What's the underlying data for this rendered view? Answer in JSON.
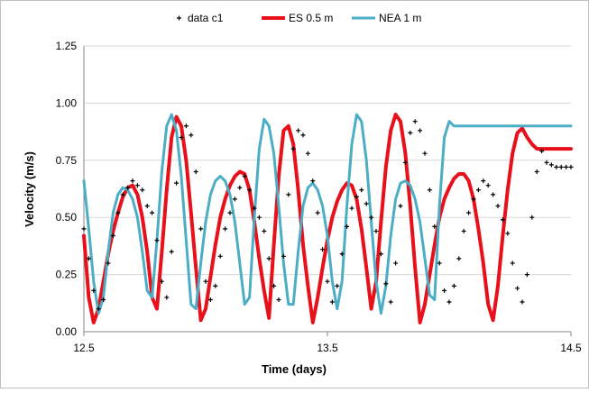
{
  "chart_data": {
    "type": "line",
    "title": "",
    "xlabel": "Time (days)",
    "ylabel": "Velocity (m/s)",
    "xlim": [
      12.5,
      14.5
    ],
    "ylim": [
      0,
      1.25
    ],
    "x_ticks": [
      12.5,
      13.5,
      14.5
    ],
    "x_tick_labels": [
      "12.5",
      "13.5",
      "14.5"
    ],
    "y_ticks": [
      0,
      0.25,
      0.5,
      0.75,
      1.0,
      1.25
    ],
    "y_tick_labels": [
      "0.00",
      "0.25",
      "0.50",
      "0.75",
      "1.00",
      "1.25"
    ],
    "grid": "horizontal",
    "legend_position": "top",
    "series": [
      {
        "name": "data c1",
        "style": "marker",
        "marker": "+",
        "color": "#000000",
        "x": [
          12.5,
          12.52,
          12.54,
          12.56,
          12.58,
          12.6,
          12.62,
          12.64,
          12.66,
          12.68,
          12.7,
          12.72,
          12.74,
          12.76,
          12.78,
          12.8,
          12.82,
          12.84,
          12.86,
          12.88,
          12.9,
          12.92,
          12.94,
          12.96,
          12.98,
          13.0,
          13.02,
          13.04,
          13.06,
          13.08,
          13.1,
          13.12,
          13.14,
          13.16,
          13.18,
          13.2,
          13.22,
          13.24,
          13.26,
          13.28,
          13.3,
          13.32,
          13.34,
          13.36,
          13.38,
          13.4,
          13.42,
          13.44,
          13.46,
          13.48,
          13.5,
          13.52,
          13.54,
          13.56,
          13.58,
          13.6,
          13.62,
          13.64,
          13.66,
          13.68,
          13.7,
          13.72,
          13.74,
          13.76,
          13.78,
          13.8,
          13.82,
          13.84,
          13.86,
          13.88,
          13.9,
          13.92,
          13.94,
          13.96,
          13.98,
          14.0,
          14.02,
          14.04,
          14.06,
          14.08,
          14.1,
          14.12,
          14.14,
          14.16,
          14.18,
          14.2,
          14.22,
          14.24,
          14.26,
          14.28,
          14.3,
          14.32,
          14.34,
          14.36,
          14.38,
          14.4,
          14.42,
          14.44,
          14.46,
          14.48,
          14.5
        ],
        "y": [
          0.45,
          0.32,
          0.18,
          0.1,
          0.14,
          0.3,
          0.42,
          0.52,
          0.6,
          0.63,
          0.66,
          0.64,
          0.62,
          0.55,
          0.52,
          0.4,
          0.22,
          0.15,
          0.35,
          0.65,
          0.85,
          0.9,
          0.86,
          0.7,
          0.45,
          0.22,
          0.14,
          0.2,
          0.33,
          0.45,
          0.52,
          0.58,
          0.63,
          0.68,
          0.62,
          0.54,
          0.5,
          0.44,
          0.32,
          0.2,
          0.14,
          0.33,
          0.6,
          0.8,
          0.88,
          0.86,
          0.78,
          0.66,
          0.52,
          0.36,
          0.22,
          0.13,
          0.2,
          0.34,
          0.46,
          0.54,
          0.59,
          0.62,
          0.56,
          0.5,
          0.44,
          0.34,
          0.21,
          0.13,
          0.3,
          0.55,
          0.74,
          0.87,
          0.92,
          0.88,
          0.78,
          0.62,
          0.46,
          0.3,
          0.18,
          0.13,
          0.2,
          0.32,
          0.44,
          0.52,
          0.58,
          0.62,
          0.66,
          0.64,
          0.6,
          0.55,
          0.49,
          0.43,
          0.3,
          0.19,
          0.13,
          0.25,
          0.5,
          0.7,
          0.79,
          0.74,
          0.73,
          0.72,
          0.72,
          0.72,
          0.72
        ]
      },
      {
        "name": "ES 0.5 m",
        "style": "line",
        "color": "#e8101a",
        "x": [
          12.5,
          12.52,
          12.54,
          12.56,
          12.58,
          12.6,
          12.62,
          12.64,
          12.66,
          12.68,
          12.7,
          12.72,
          12.74,
          12.76,
          12.78,
          12.8,
          12.82,
          12.84,
          12.86,
          12.88,
          12.9,
          12.92,
          12.94,
          12.96,
          12.98,
          13.0,
          13.02,
          13.04,
          13.06,
          13.08,
          13.1,
          13.12,
          13.14,
          13.16,
          13.18,
          13.2,
          13.22,
          13.24,
          13.26,
          13.28,
          13.3,
          13.32,
          13.34,
          13.36,
          13.38,
          13.4,
          13.42,
          13.44,
          13.46,
          13.48,
          13.5,
          13.52,
          13.54,
          13.56,
          13.58,
          13.6,
          13.62,
          13.64,
          13.66,
          13.68,
          13.7,
          13.72,
          13.74,
          13.76,
          13.78,
          13.8,
          13.82,
          13.84,
          13.86,
          13.88,
          13.9,
          13.92,
          13.94,
          13.96,
          13.98,
          14.0,
          14.02,
          14.04,
          14.06,
          14.08,
          14.1,
          14.12,
          14.14,
          14.16,
          14.18,
          14.2,
          14.22,
          14.24,
          14.26,
          14.28,
          14.3,
          14.32,
          14.34,
          14.36,
          14.38,
          14.4,
          14.42,
          14.44,
          14.46,
          14.48,
          14.5
        ],
        "y": [
          0.42,
          0.15,
          0.04,
          0.1,
          0.22,
          0.34,
          0.44,
          0.52,
          0.59,
          0.63,
          0.64,
          0.6,
          0.5,
          0.35,
          0.15,
          0.1,
          0.35,
          0.62,
          0.85,
          0.94,
          0.9,
          0.75,
          0.52,
          0.28,
          0.05,
          0.1,
          0.24,
          0.38,
          0.5,
          0.58,
          0.64,
          0.68,
          0.7,
          0.69,
          0.62,
          0.48,
          0.32,
          0.18,
          0.06,
          0.38,
          0.68,
          0.88,
          0.9,
          0.82,
          0.62,
          0.38,
          0.2,
          0.04,
          0.15,
          0.28,
          0.4,
          0.5,
          0.57,
          0.62,
          0.65,
          0.64,
          0.58,
          0.45,
          0.28,
          0.1,
          0.22,
          0.48,
          0.72,
          0.88,
          0.95,
          0.92,
          0.78,
          0.55,
          0.28,
          0.04,
          0.12,
          0.25,
          0.38,
          0.5,
          0.58,
          0.63,
          0.67,
          0.69,
          0.69,
          0.66,
          0.58,
          0.45,
          0.3,
          0.12,
          0.05,
          0.2,
          0.42,
          0.62,
          0.78,
          0.87,
          0.89,
          0.85,
          0.82,
          0.8,
          0.8,
          0.8,
          0.8,
          0.8,
          0.8,
          0.8,
          0.8
        ]
      },
      {
        "name": "NEA 1 m",
        "style": "line",
        "color": "#4badc6",
        "x": [
          12.5,
          12.52,
          12.54,
          12.56,
          12.58,
          12.6,
          12.62,
          12.64,
          12.66,
          12.68,
          12.7,
          12.72,
          12.74,
          12.76,
          12.78,
          12.8,
          12.82,
          12.84,
          12.86,
          12.88,
          12.9,
          12.92,
          12.94,
          12.96,
          12.98,
          13.0,
          13.02,
          13.04,
          13.06,
          13.08,
          13.1,
          13.12,
          13.14,
          13.16,
          13.18,
          13.2,
          13.22,
          13.24,
          13.26,
          13.28,
          13.3,
          13.32,
          13.34,
          13.36,
          13.38,
          13.4,
          13.42,
          13.44,
          13.46,
          13.48,
          13.5,
          13.52,
          13.54,
          13.56,
          13.58,
          13.6,
          13.62,
          13.64,
          13.66,
          13.68,
          13.7,
          13.72,
          13.74,
          13.76,
          13.78,
          13.8,
          13.82,
          13.84,
          13.86,
          13.88,
          13.9,
          13.92,
          13.94,
          13.96,
          13.98,
          14.0,
          14.02,
          14.04,
          14.06,
          14.08,
          14.1,
          14.12,
          14.14,
          14.16,
          14.18,
          14.2,
          14.22,
          14.24,
          14.26,
          14.28,
          14.3,
          14.32,
          14.34,
          14.36,
          14.38,
          14.4,
          14.42,
          14.44,
          14.46,
          14.48,
          14.5
        ],
        "y": [
          0.66,
          0.45,
          0.22,
          0.08,
          0.15,
          0.35,
          0.52,
          0.6,
          0.63,
          0.62,
          0.58,
          0.5,
          0.35,
          0.18,
          0.15,
          0.4,
          0.7,
          0.9,
          0.95,
          0.88,
          0.68,
          0.4,
          0.12,
          0.1,
          0.3,
          0.48,
          0.6,
          0.66,
          0.68,
          0.66,
          0.6,
          0.48,
          0.3,
          0.12,
          0.15,
          0.5,
          0.8,
          0.93,
          0.9,
          0.78,
          0.55,
          0.3,
          0.12,
          0.12,
          0.35,
          0.55,
          0.63,
          0.65,
          0.62,
          0.55,
          0.42,
          0.22,
          0.1,
          0.22,
          0.55,
          0.82,
          0.95,
          0.92,
          0.75,
          0.48,
          0.22,
          0.08,
          0.2,
          0.42,
          0.58,
          0.65,
          0.66,
          0.64,
          0.58,
          0.48,
          0.32,
          0.16,
          0.14,
          0.55,
          0.85,
          0.92,
          0.9,
          0.9,
          0.9,
          0.9,
          0.9,
          0.9,
          0.9,
          0.9,
          0.9,
          0.9,
          0.9,
          0.9,
          0.9,
          0.9,
          0.9,
          0.9,
          0.9,
          0.9,
          0.9,
          0.9,
          0.9,
          0.9,
          0.9,
          0.9,
          0.9
        ]
      }
    ]
  }
}
